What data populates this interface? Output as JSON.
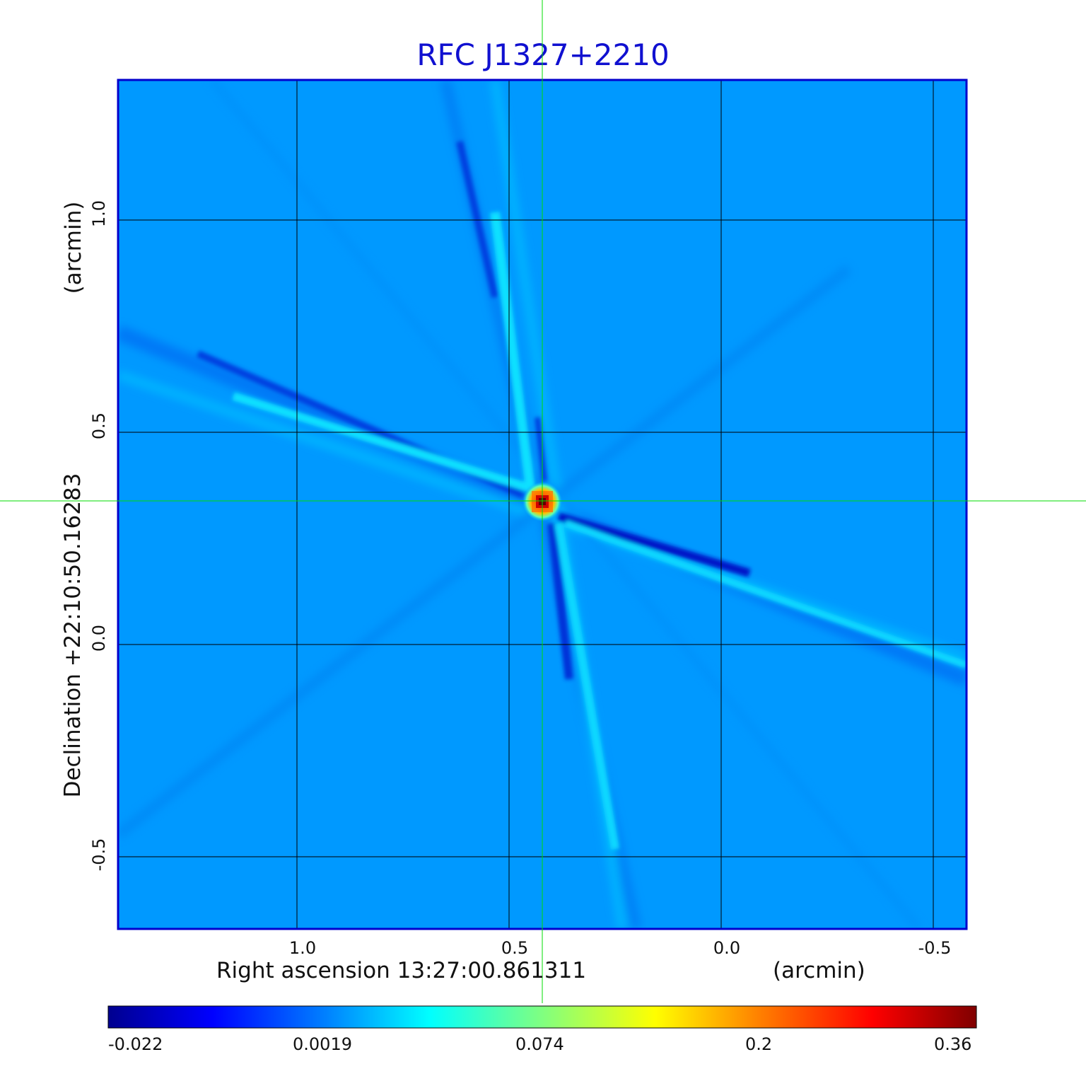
{
  "title": "RFC J1327+2210",
  "x_axis": {
    "label": "Right ascension  13:27:00.861311",
    "unit": "(arcmin)",
    "ticks": [
      "1.0",
      "0.5",
      "0.0",
      "-0.5"
    ]
  },
  "y_axis": {
    "label": "Declination  +22:10:50.16283",
    "unit": "(arcmin)",
    "ticks": [
      "1.0",
      "0.5",
      "0.0",
      "-0.5"
    ]
  },
  "colorbar": {
    "ticks": [
      "-0.022",
      "0.0019",
      "0.074",
      "0.2",
      "0.36"
    ],
    "colormap": "jet"
  },
  "colors": {
    "title": "#1010d0",
    "frame": "#0000cc",
    "crosshair": "#00dd00",
    "grid": "#000000",
    "background_field": "#0099ff"
  }
}
